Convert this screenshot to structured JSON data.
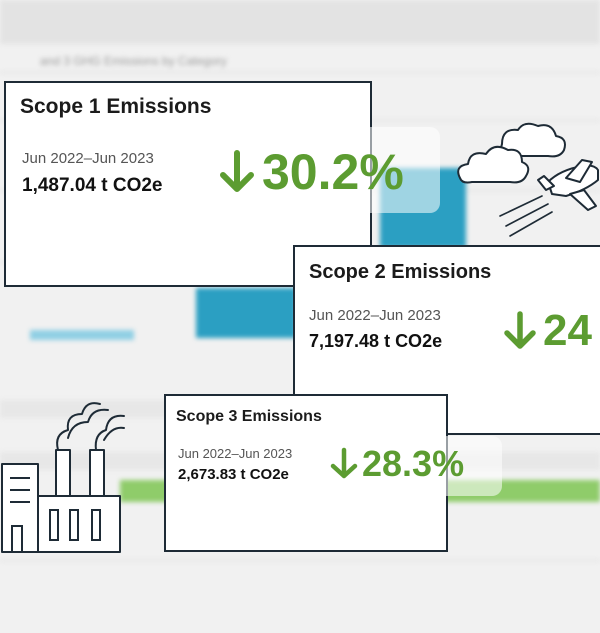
{
  "background": {
    "header_text": "and 3 GHG Emissions by Category"
  },
  "cards": [
    {
      "title": "Scope 1 Emissions",
      "period": "Jun 2022–Jun 2023",
      "value": "1,487.04 t CO2e",
      "change": "30.2%",
      "direction": "down"
    },
    {
      "title": "Scope 2 Emissions",
      "period": "Jun 2022–Jun 2023",
      "value": "7,197.48 t CO2e",
      "change": "24",
      "direction": "down"
    },
    {
      "title": "Scope 3 Emissions",
      "period": "Jun 2022–Jun 2023",
      "value": "2,673.83 t CO2e",
      "change": "28.3%",
      "direction": "down"
    }
  ],
  "colors": {
    "accent_green": "#5c9c31",
    "card_border": "#1e2b36",
    "chart_blue": "#2b9fc2"
  },
  "icons": [
    "airplane-icon",
    "clouds-icon",
    "factory-icon",
    "down-arrow-icon"
  ]
}
